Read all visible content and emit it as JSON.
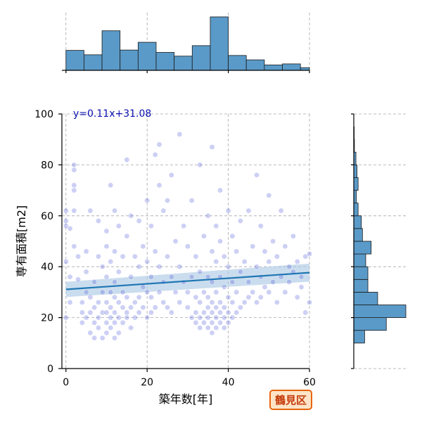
{
  "chart_data": {
    "type": "scatter",
    "xlabel": "築年数[年]",
    "ylabel": "専有面積[m2]",
    "xlim": [
      -1,
      60
    ],
    "ylim": [
      0,
      100
    ],
    "x_ticks": [
      0,
      20,
      40,
      60
    ],
    "y_ticks": [
      0,
      20,
      40,
      60,
      80,
      100
    ],
    "grid": true,
    "regression": {
      "equation": "y=0.11x+31.08",
      "slope": 0.11,
      "intercept": 31.08,
      "color": "#1f77b4",
      "band_color": "#aecbe5"
    },
    "annotation": "鶴見区",
    "point_color": "#4b55d6",
    "hist_color": "#5a9ac8",
    "x_hist": {
      "bin_edges": [
        0,
        4.44,
        8.89,
        13.33,
        17.78,
        22.22,
        26.67,
        31.11,
        35.56,
        40.0,
        44.44,
        48.89,
        53.33,
        57.78,
        60.0
      ],
      "counts": [
        59,
        46,
        117,
        60,
        83,
        53,
        42,
        73,
        158,
        44,
        31,
        16,
        19,
        8
      ]
    },
    "y_hist": {
      "bin_edges": [
        10,
        15,
        20,
        25,
        30,
        35,
        40,
        45,
        50,
        55,
        60,
        65,
        70,
        75,
        80,
        85,
        90,
        95
      ],
      "counts": [
        50,
        150,
        240,
        110,
        65,
        65,
        55,
        80,
        40,
        35,
        20,
        12,
        20,
        15,
        10,
        3,
        2
      ]
    },
    "points": [
      [
        0,
        20
      ],
      [
        0,
        42
      ],
      [
        0,
        58
      ],
      [
        0,
        62
      ],
      [
        0,
        56
      ],
      [
        1,
        26
      ],
      [
        1,
        36
      ],
      [
        1,
        55
      ],
      [
        2,
        70
      ],
      [
        2,
        72
      ],
      [
        2,
        80
      ],
      [
        2,
        78
      ],
      [
        2,
        62
      ],
      [
        2,
        48
      ],
      [
        3,
        35
      ],
      [
        3,
        44
      ],
      [
        4,
        22
      ],
      [
        4,
        18
      ],
      [
        4,
        26
      ],
      [
        5,
        20
      ],
      [
        5,
        30
      ],
      [
        5,
        38
      ],
      [
        5,
        46
      ],
      [
        6,
        14
      ],
      [
        6,
        22
      ],
      [
        6,
        28
      ],
      [
        6,
        62
      ],
      [
        7,
        12
      ],
      [
        7,
        18
      ],
      [
        7,
        24
      ],
      [
        7,
        34
      ],
      [
        8,
        16
      ],
      [
        8,
        20
      ],
      [
        8,
        26
      ],
      [
        8,
        44
      ],
      [
        8,
        58
      ],
      [
        9,
        12
      ],
      [
        9,
        22
      ],
      [
        9,
        30
      ],
      [
        9,
        40
      ],
      [
        10,
        14
      ],
      [
        10,
        18
      ],
      [
        10,
        22
      ],
      [
        10,
        26
      ],
      [
        10,
        36
      ],
      [
        10,
        48
      ],
      [
        10,
        54
      ],
      [
        11,
        16
      ],
      [
        11,
        20
      ],
      [
        11,
        24
      ],
      [
        11,
        30
      ],
      [
        11,
        42
      ],
      [
        11,
        72
      ],
      [
        12,
        12
      ],
      [
        12,
        18
      ],
      [
        12,
        22
      ],
      [
        12,
        28
      ],
      [
        12,
        34
      ],
      [
        12,
        46
      ],
      [
        12,
        62
      ],
      [
        13,
        14
      ],
      [
        13,
        20
      ],
      [
        13,
        26
      ],
      [
        13,
        38
      ],
      [
        13,
        56
      ],
      [
        14,
        18
      ],
      [
        14,
        24
      ],
      [
        14,
        30
      ],
      [
        14,
        44
      ],
      [
        15,
        20
      ],
      [
        15,
        22
      ],
      [
        15,
        28
      ],
      [
        15,
        82
      ],
      [
        15,
        52
      ],
      [
        16,
        16
      ],
      [
        16,
        24
      ],
      [
        16,
        36
      ],
      [
        16,
        60
      ],
      [
        17,
        20
      ],
      [
        17,
        26
      ],
      [
        17,
        44
      ],
      [
        18,
        22
      ],
      [
        18,
        28
      ],
      [
        18,
        58
      ],
      [
        18,
        40
      ],
      [
        19,
        24
      ],
      [
        19,
        32
      ],
      [
        19,
        48
      ],
      [
        20,
        20
      ],
      [
        20,
        30
      ],
      [
        20,
        42
      ],
      [
        20,
        66
      ],
      [
        21,
        22
      ],
      [
        21,
        28
      ],
      [
        21,
        36
      ],
      [
        21,
        56
      ],
      [
        22,
        84
      ],
      [
        22,
        46
      ],
      [
        22,
        24
      ],
      [
        23,
        30
      ],
      [
        23,
        40
      ],
      [
        23,
        88
      ],
      [
        23,
        72
      ],
      [
        24,
        26
      ],
      [
        24,
        34
      ],
      [
        24,
        62
      ],
      [
        25,
        24
      ],
      [
        25,
        44
      ],
      [
        25,
        66
      ],
      [
        26,
        22
      ],
      [
        26,
        36
      ],
      [
        26,
        76
      ],
      [
        27,
        30
      ],
      [
        27,
        50
      ],
      [
        28,
        92
      ],
      [
        28,
        40
      ],
      [
        28,
        26
      ],
      [
        29,
        34
      ],
      [
        29,
        56
      ],
      [
        30,
        24
      ],
      [
        30,
        30
      ],
      [
        30,
        48
      ],
      [
        31,
        20
      ],
      [
        31,
        36
      ],
      [
        31,
        66
      ],
      [
        32,
        18
      ],
      [
        32,
        22
      ],
      [
        32,
        28
      ],
      [
        32,
        44
      ],
      [
        33,
        16
      ],
      [
        33,
        20
      ],
      [
        33,
        26
      ],
      [
        33,
        38
      ],
      [
        33,
        80
      ],
      [
        34,
        18
      ],
      [
        34,
        22
      ],
      [
        34,
        30
      ],
      [
        34,
        52
      ],
      [
        35,
        16
      ],
      [
        35,
        20
      ],
      [
        35,
        24
      ],
      [
        35,
        28
      ],
      [
        35,
        36
      ],
      [
        35,
        60
      ],
      [
        36,
        14
      ],
      [
        36,
        18
      ],
      [
        36,
        22
      ],
      [
        36,
        26
      ],
      [
        36,
        34
      ],
      [
        36,
        46
      ],
      [
        36,
        87
      ],
      [
        37,
        16
      ],
      [
        37,
        20
      ],
      [
        37,
        24
      ],
      [
        37,
        30
      ],
      [
        37,
        42
      ],
      [
        37,
        56
      ],
      [
        38,
        18
      ],
      [
        38,
        22
      ],
      [
        38,
        26
      ],
      [
        38,
        36
      ],
      [
        38,
        50
      ],
      [
        38,
        70
      ],
      [
        39,
        16
      ],
      [
        39,
        20
      ],
      [
        39,
        24
      ],
      [
        39,
        32
      ],
      [
        39,
        44
      ],
      [
        40,
        18
      ],
      [
        40,
        22
      ],
      [
        40,
        28
      ],
      [
        40,
        40
      ],
      [
        40,
        62
      ],
      [
        41,
        20
      ],
      [
        41,
        26
      ],
      [
        41,
        34
      ],
      [
        41,
        52
      ],
      [
        42,
        22
      ],
      [
        42,
        30
      ],
      [
        42,
        46
      ],
      [
        43,
        24
      ],
      [
        43,
        38
      ],
      [
        43,
        58
      ],
      [
        44,
        26
      ],
      [
        44,
        42
      ],
      [
        45,
        28
      ],
      [
        45,
        34
      ],
      [
        45,
        62
      ],
      [
        46,
        30
      ],
      [
        46,
        48
      ],
      [
        47,
        26
      ],
      [
        47,
        40
      ],
      [
        47,
        76
      ],
      [
        48,
        28
      ],
      [
        48,
        36
      ],
      [
        48,
        56
      ],
      [
        49,
        32
      ],
      [
        49,
        46
      ],
      [
        50,
        30
      ],
      [
        50,
        42
      ],
      [
        50,
        68
      ],
      [
        51,
        34
      ],
      [
        51,
        50
      ],
      [
        52,
        26
      ],
      [
        52,
        44
      ],
      [
        53,
        36
      ],
      [
        53,
        62
      ],
      [
        54,
        30
      ],
      [
        54,
        48
      ],
      [
        55,
        34
      ],
      [
        55,
        40
      ],
      [
        56,
        38
      ],
      [
        56,
        52
      ],
      [
        57,
        28
      ],
      [
        57,
        42
      ],
      [
        58,
        32
      ],
      [
        58,
        36
      ],
      [
        59,
        44
      ],
      [
        59,
        22
      ],
      [
        60,
        26
      ],
      [
        60,
        45
      ]
    ]
  }
}
